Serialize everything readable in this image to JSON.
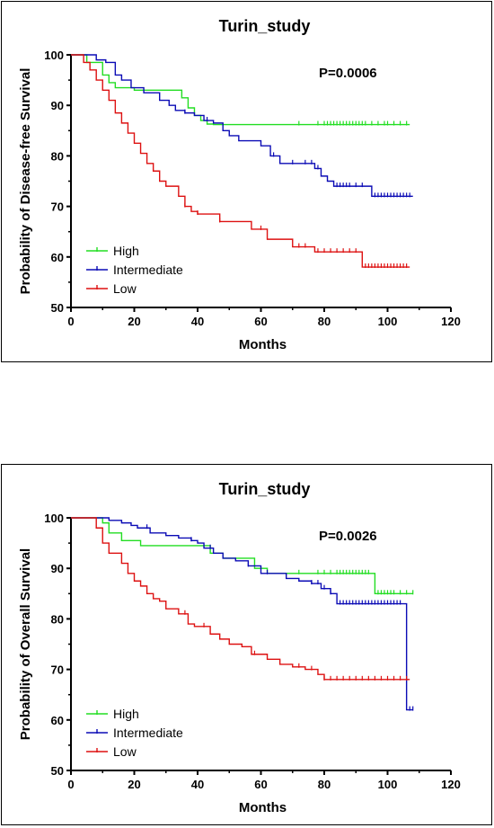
{
  "chart_data": [
    {
      "type": "line",
      "title": "Turin_study",
      "xlabel": "Months",
      "ylabel": "Probability of Disease-free Survival",
      "xlim": [
        0,
        120
      ],
      "ylim": [
        50,
        100
      ],
      "xticks": [
        "0",
        "20",
        "40",
        "60",
        "80",
        "100",
        "120"
      ],
      "yticks": [
        "50",
        "60",
        "70",
        "80",
        "90",
        "100"
      ],
      "annotation": "P=0.0006",
      "legend_position": "bottom-left",
      "series": [
        {
          "name": "High",
          "color": "#22dd22",
          "x": [
            0,
            5,
            10,
            12,
            14,
            20,
            35,
            37,
            39,
            41,
            43,
            45,
            107
          ],
          "y": [
            100,
            98.5,
            96,
            94.5,
            93.5,
            93,
            91.5,
            89.5,
            88,
            87,
            86.3,
            86.2,
            86.2
          ],
          "censor_x": [
            72,
            78,
            80,
            81,
            82,
            83,
            84,
            85,
            86,
            87,
            88,
            89,
            90,
            91,
            92,
            93,
            95,
            97,
            99,
            100,
            102,
            104,
            106
          ]
        },
        {
          "name": "Intermediate",
          "color": "#0b0bb5",
          "x": [
            0,
            8,
            11,
            14,
            16,
            19,
            23,
            28,
            31,
            33,
            36,
            39,
            42,
            45,
            48,
            50,
            53,
            60,
            63,
            66,
            72,
            77,
            79,
            81,
            83,
            95,
            108
          ],
          "y": [
            100,
            99,
            98.5,
            96,
            95,
            93.5,
            92.5,
            91,
            90,
            89,
            88.5,
            88,
            87,
            86.5,
            85,
            84,
            83,
            82,
            80,
            78.5,
            78.5,
            77.5,
            76,
            75,
            74,
            72,
            72
          ],
          "censor_x": [
            36,
            43,
            64,
            70,
            74,
            76,
            78,
            84,
            85,
            86,
            87,
            88,
            90,
            92,
            96,
            97,
            98,
            99,
            100,
            101,
            102,
            103,
            104,
            105,
            106,
            107
          ]
        },
        {
          "name": "Low",
          "color": "#dd1111",
          "x": [
            0,
            4,
            6,
            8,
            10,
            12,
            14,
            16,
            18,
            20,
            22,
            24,
            26,
            28,
            30,
            34,
            36,
            38,
            40,
            47,
            57,
            62,
            70,
            77,
            79,
            92,
            107
          ],
          "y": [
            100,
            98.5,
            97,
            95,
            93,
            91,
            88.5,
            86.5,
            84.5,
            82.5,
            80.5,
            78.5,
            77,
            75,
            74,
            72,
            70,
            69,
            68.5,
            67,
            65.5,
            63.5,
            62,
            61,
            61,
            58,
            58
          ],
          "censor_x": [
            36,
            40,
            47,
            60,
            72,
            74,
            78,
            80,
            82,
            84,
            86,
            88,
            90,
            93,
            94,
            95,
            96,
            97,
            98,
            99,
            100,
            101,
            102,
            103,
            104,
            105,
            106
          ]
        }
      ]
    },
    {
      "type": "line",
      "title": "Turin_study",
      "xlabel": "Months",
      "ylabel": "Probability of Overall Survival",
      "xlim": [
        0,
        120
      ],
      "ylim": [
        50,
        100
      ],
      "xticks": [
        "0",
        "20",
        "40",
        "60",
        "80",
        "100",
        "120"
      ],
      "yticks": [
        "50",
        "60",
        "70",
        "80",
        "90",
        "100"
      ],
      "annotation": "P=0.0026",
      "legend_position": "bottom-left",
      "series": [
        {
          "name": "High",
          "color": "#22dd22",
          "x": [
            0,
            10,
            12,
            16,
            22,
            40,
            44,
            48,
            58,
            62,
            96,
            108
          ],
          "y": [
            100,
            99,
            97,
            95.5,
            94.5,
            94.5,
            93,
            92,
            90,
            89,
            85,
            85
          ],
          "censor_x": [
            72,
            78,
            80,
            82,
            84,
            85,
            86,
            87,
            88,
            89,
            90,
            91,
            92,
            93,
            94,
            97,
            98,
            99,
            100,
            101,
            102,
            104,
            106,
            108
          ]
        },
        {
          "name": "Intermediate",
          "color": "#0b0bb5",
          "x": [
            0,
            12,
            16,
            19,
            21,
            25,
            30,
            34,
            38,
            40,
            42,
            45,
            48,
            52,
            56,
            60,
            68,
            72,
            76,
            79,
            82,
            84,
            100,
            106,
            108
          ],
          "y": [
            100,
            99.5,
            99,
            98.5,
            98,
            97,
            96.5,
            96,
            95.5,
            95,
            94,
            93,
            92,
            91.5,
            90.5,
            89,
            88,
            87.5,
            87,
            86,
            85,
            83,
            83,
            62,
            62
          ],
          "censor_x": [
            24,
            38,
            44,
            56,
            62,
            76,
            78,
            80,
            82,
            85,
            86,
            87,
            88,
            89,
            90,
            91,
            92,
            93,
            94,
            95,
            96,
            97,
            98,
            99,
            100,
            101,
            102,
            103,
            104,
            107,
            108
          ]
        },
        {
          "name": "Low",
          "color": "#dd1111",
          "x": [
            0,
            8,
            10,
            12,
            16,
            18,
            20,
            22,
            24,
            26,
            28,
            30,
            34,
            37,
            39,
            44,
            47,
            50,
            54,
            57,
            62,
            66,
            70,
            74,
            78,
            80,
            107
          ],
          "y": [
            100,
            98,
            95,
            93,
            91,
            89,
            87.5,
            86.5,
            85,
            84,
            83.5,
            82,
            81,
            79,
            78.5,
            77,
            76,
            75,
            74.5,
            73,
            72,
            71,
            70.5,
            70,
            69,
            68,
            68
          ],
          "censor_x": [
            36,
            42,
            58,
            72,
            76,
            80,
            82,
            84,
            86,
            88,
            90,
            92,
            94,
            96,
            98,
            100,
            102,
            104,
            106
          ]
        }
      ]
    }
  ]
}
